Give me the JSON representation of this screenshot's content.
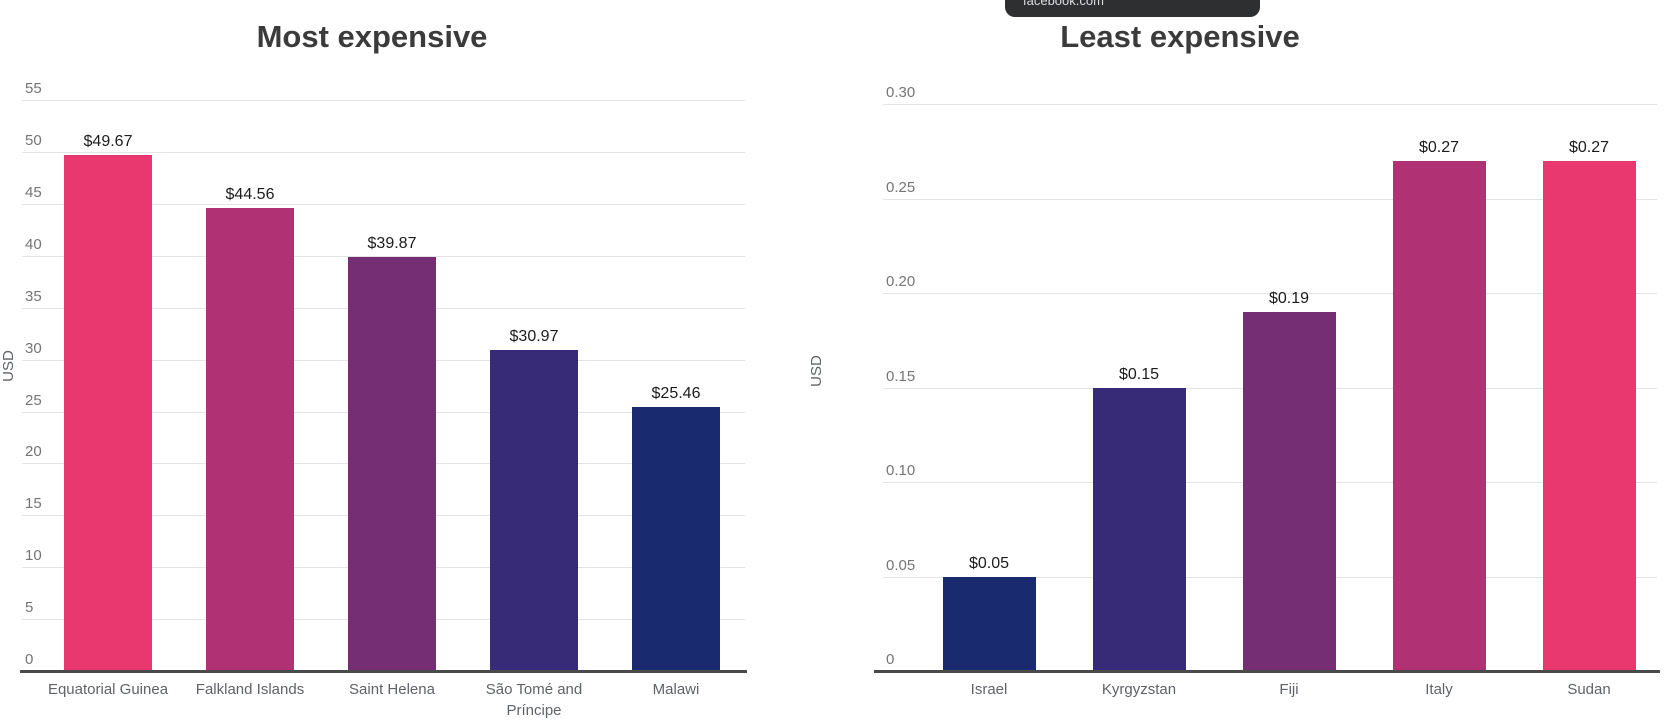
{
  "tooltip": {
    "text": "facebook.com",
    "bg": "#2D2F31",
    "text_color": "#DADCE0"
  },
  "chart_data": [
    {
      "type": "bar",
      "title": "Most expensive",
      "xlabel": "",
      "ylabel": "USD",
      "categories": [
        "Equatorial Guinea",
        "Falkland Islands",
        "Saint Helena",
        "São Tomé and Príncipe",
        "Malawi"
      ],
      "values": [
        49.67,
        44.56,
        39.87,
        30.97,
        25.46
      ],
      "value_labels": [
        "$49.67",
        "$44.56",
        "$39.87",
        "$30.97",
        "$25.46"
      ],
      "bar_colors": [
        "#E9386F",
        "#B03274",
        "#752D74",
        "#372A76",
        "#1A2A6E"
      ],
      "ylim": [
        0,
        55
      ],
      "yticks": [
        0,
        5,
        10,
        15,
        20,
        25,
        30,
        35,
        40,
        45,
        50,
        55
      ],
      "ytick_labels": [
        "0",
        "5",
        "10",
        "15",
        "20",
        "25",
        "30",
        "35",
        "40",
        "45",
        "50",
        "55"
      ],
      "grid": true,
      "legend": "none"
    },
    {
      "type": "bar",
      "title": "Least expensive",
      "xlabel": "",
      "ylabel": "USD",
      "categories": [
        "Israel",
        "Kyrgyzstan",
        "Fiji",
        "Italy",
        "Sudan"
      ],
      "values": [
        0.05,
        0.15,
        0.19,
        0.27,
        0.27
      ],
      "value_labels": [
        "$0.05",
        "$0.15",
        "$0.19",
        "$0.27",
        "$0.27"
      ],
      "bar_colors": [
        "#1A2A6E",
        "#372A76",
        "#752D74",
        "#B03274",
        "#E9386F"
      ],
      "ylim": [
        0,
        0.3
      ],
      "yticks": [
        0,
        0.05,
        0.1,
        0.15,
        0.2,
        0.25,
        0.3
      ],
      "ytick_labels": [
        "0",
        "0.05",
        "0.10",
        "0.15",
        "0.20",
        "0.25",
        "0.30"
      ],
      "grid": true,
      "legend": "none"
    }
  ]
}
